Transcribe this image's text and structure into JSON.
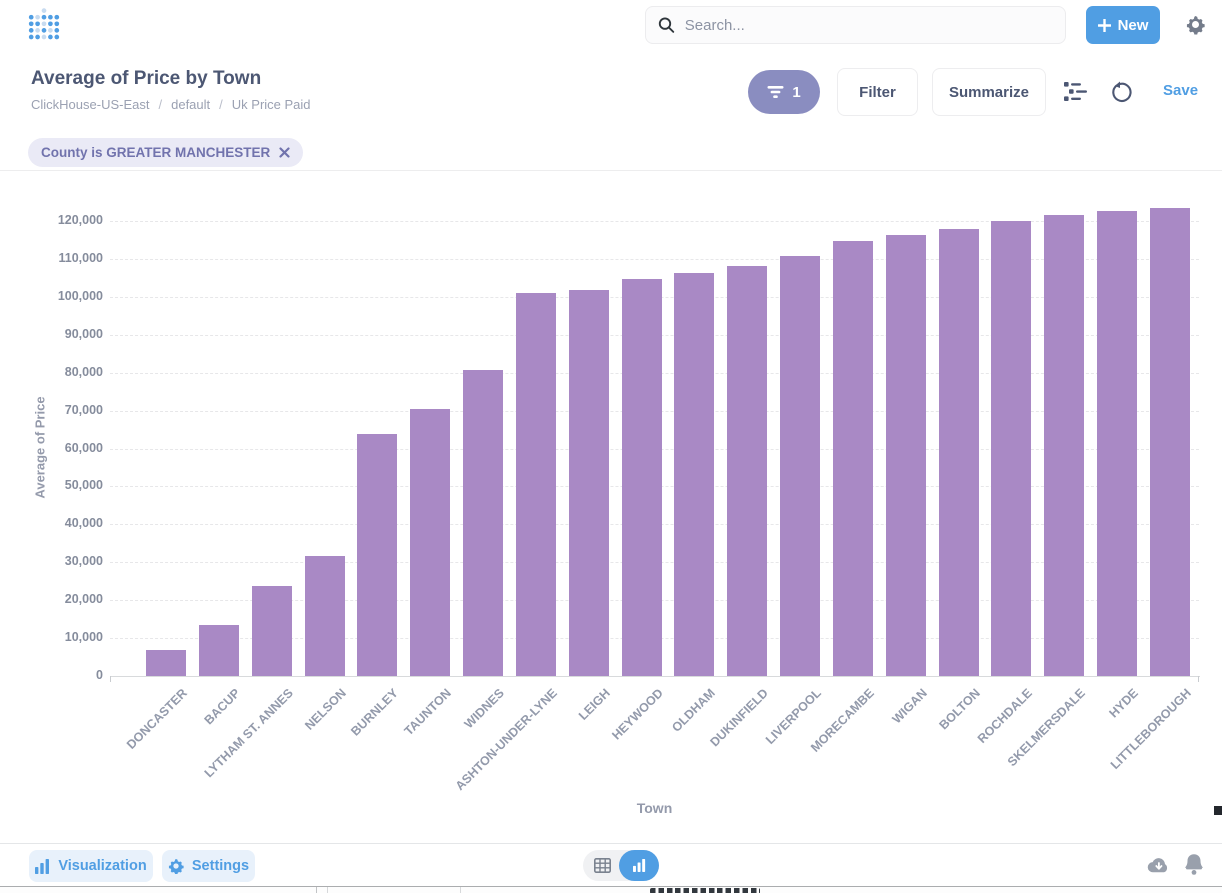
{
  "header": {
    "search_placeholder": "Search...",
    "new_label": "New"
  },
  "question": {
    "title": "Average of Price by Town",
    "breadcrumb": [
      "ClickHouse-US-East",
      "default",
      "Uk Price Paid"
    ],
    "breadcrumb_sep": "/",
    "filter_count": "1",
    "filter_label": "Filter",
    "summarize_label": "Summarize",
    "save_label": "Save"
  },
  "filters": {
    "chips": [
      {
        "label": "County is GREATER MANCHESTER"
      }
    ]
  },
  "chart_data": {
    "type": "bar",
    "title": "Average of Price by Town",
    "xlabel": "Town",
    "ylabel": "Average of Price",
    "ylim": [
      0,
      120000
    ],
    "ytick_step": 10000,
    "grid": "dashed-horizontal",
    "legend": "none",
    "color": "#A989C5",
    "categories": [
      "DONCASTER",
      "BACUP",
      "LYTHAM ST. ANNES",
      "NELSON",
      "BURNLEY",
      "TAUNTON",
      "WIDNES",
      "ASHTON-UNDER-LYNE",
      "LEIGH",
      "HEYWOOD",
      "OLDHAM",
      "DUKINFIELD",
      "LIVERPOOL",
      "MORECAMBE",
      "WIGAN",
      "BOLTON",
      "ROCHDALE",
      "SKELMERSDALE",
      "HYDE",
      "LITTLEBOROUGH"
    ],
    "values": [
      6900,
      13400,
      23700,
      31600,
      63800,
      70500,
      80800,
      101100,
      101700,
      104600,
      106300,
      108200,
      110700,
      114700,
      116400,
      118000,
      119900,
      121500,
      122700,
      123500
    ]
  },
  "footer": {
    "visualization_label": "Visualization",
    "settings_label": "Settings"
  },
  "colors": {
    "brand": "#509EE3",
    "bar": "#A989C5",
    "filter_accent": "#7173AD",
    "text_dark": "#4C5773",
    "text_gray": "#949AAB"
  }
}
